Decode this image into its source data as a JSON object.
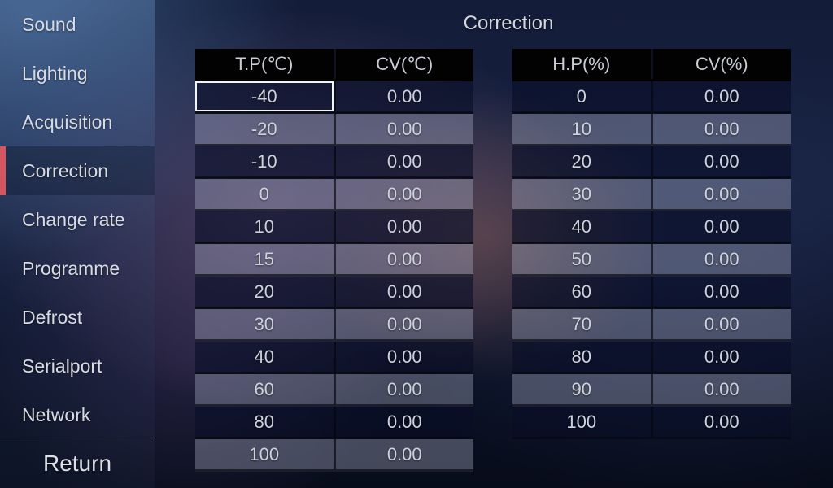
{
  "page_title": "Correction",
  "accent_color": "#d5565e",
  "sidebar": {
    "items": [
      {
        "label": "Sound",
        "selected": false
      },
      {
        "label": "Lighting",
        "selected": false
      },
      {
        "label": "Acquisition",
        "selected": false
      },
      {
        "label": "Correction",
        "selected": true
      },
      {
        "label": "Change rate",
        "selected": false
      },
      {
        "label": "Programme",
        "selected": false
      },
      {
        "label": "Defrost",
        "selected": false
      },
      {
        "label": "Serialport",
        "selected": false
      },
      {
        "label": "Network",
        "selected": false
      }
    ],
    "return_label": "Return"
  },
  "tables": [
    {
      "id": "temperature-correction",
      "headers": [
        "T.P(℃)",
        "CV(℃)"
      ],
      "rows": [
        [
          "-40",
          "0.00"
        ],
        [
          "-20",
          "0.00"
        ],
        [
          "-10",
          "0.00"
        ],
        [
          "0",
          "0.00"
        ],
        [
          "10",
          "0.00"
        ],
        [
          "15",
          "0.00"
        ],
        [
          "20",
          "0.00"
        ],
        [
          "30",
          "0.00"
        ],
        [
          "40",
          "0.00"
        ],
        [
          "60",
          "0.00"
        ],
        [
          "80",
          "0.00"
        ],
        [
          "100",
          "0.00"
        ]
      ],
      "selected_cell": {
        "row": 0,
        "col": 0
      }
    },
    {
      "id": "humidity-correction",
      "headers": [
        "H.P(%)",
        "CV(%)"
      ],
      "rows": [
        [
          "0",
          "0.00"
        ],
        [
          "10",
          "0.00"
        ],
        [
          "20",
          "0.00"
        ],
        [
          "30",
          "0.00"
        ],
        [
          "40",
          "0.00"
        ],
        [
          "50",
          "0.00"
        ],
        [
          "60",
          "0.00"
        ],
        [
          "70",
          "0.00"
        ],
        [
          "80",
          "0.00"
        ],
        [
          "90",
          "0.00"
        ],
        [
          "100",
          "0.00"
        ]
      ],
      "selected_cell": null
    }
  ]
}
